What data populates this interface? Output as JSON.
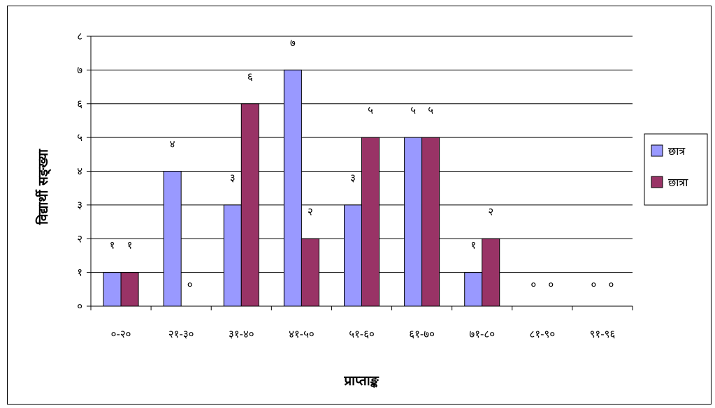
{
  "chart_data": {
    "type": "bar",
    "categories": [
      "०-२०",
      "२१-३०",
      "३१-४०",
      "४१-५०",
      "५१-६०",
      "६१-७०",
      "७१-८०",
      "८१-९०",
      "९१-९६"
    ],
    "series": [
      {
        "name": "छात्र",
        "values": [
          1,
          4,
          3,
          7,
          3,
          5,
          1,
          0,
          0
        ],
        "value_labels": [
          "१",
          "४",
          "३",
          "७",
          "३",
          "५",
          "१",
          "०",
          "०"
        ],
        "color": "#9999ff"
      },
      {
        "name": "छात्रा",
        "values": [
          1,
          0,
          6,
          2,
          5,
          5,
          2,
          0,
          0
        ],
        "value_labels": [
          "१",
          "०",
          "६",
          "२",
          "५",
          "५",
          "२",
          "०",
          "०"
        ],
        "color": "#993366"
      }
    ],
    "ylim": [
      0,
      8
    ],
    "yticks": [
      0,
      1,
      2,
      3,
      4,
      5,
      6,
      7,
      8
    ],
    "ytick_labels": [
      "०",
      "१",
      "२",
      "३",
      "४",
      "५",
      "६",
      "७",
      "८"
    ],
    "xlabel": "प्राप्ताङ्क",
    "ylabel": "विद्यार्थी सङ्ख्या",
    "grid": true,
    "legend": "right"
  }
}
